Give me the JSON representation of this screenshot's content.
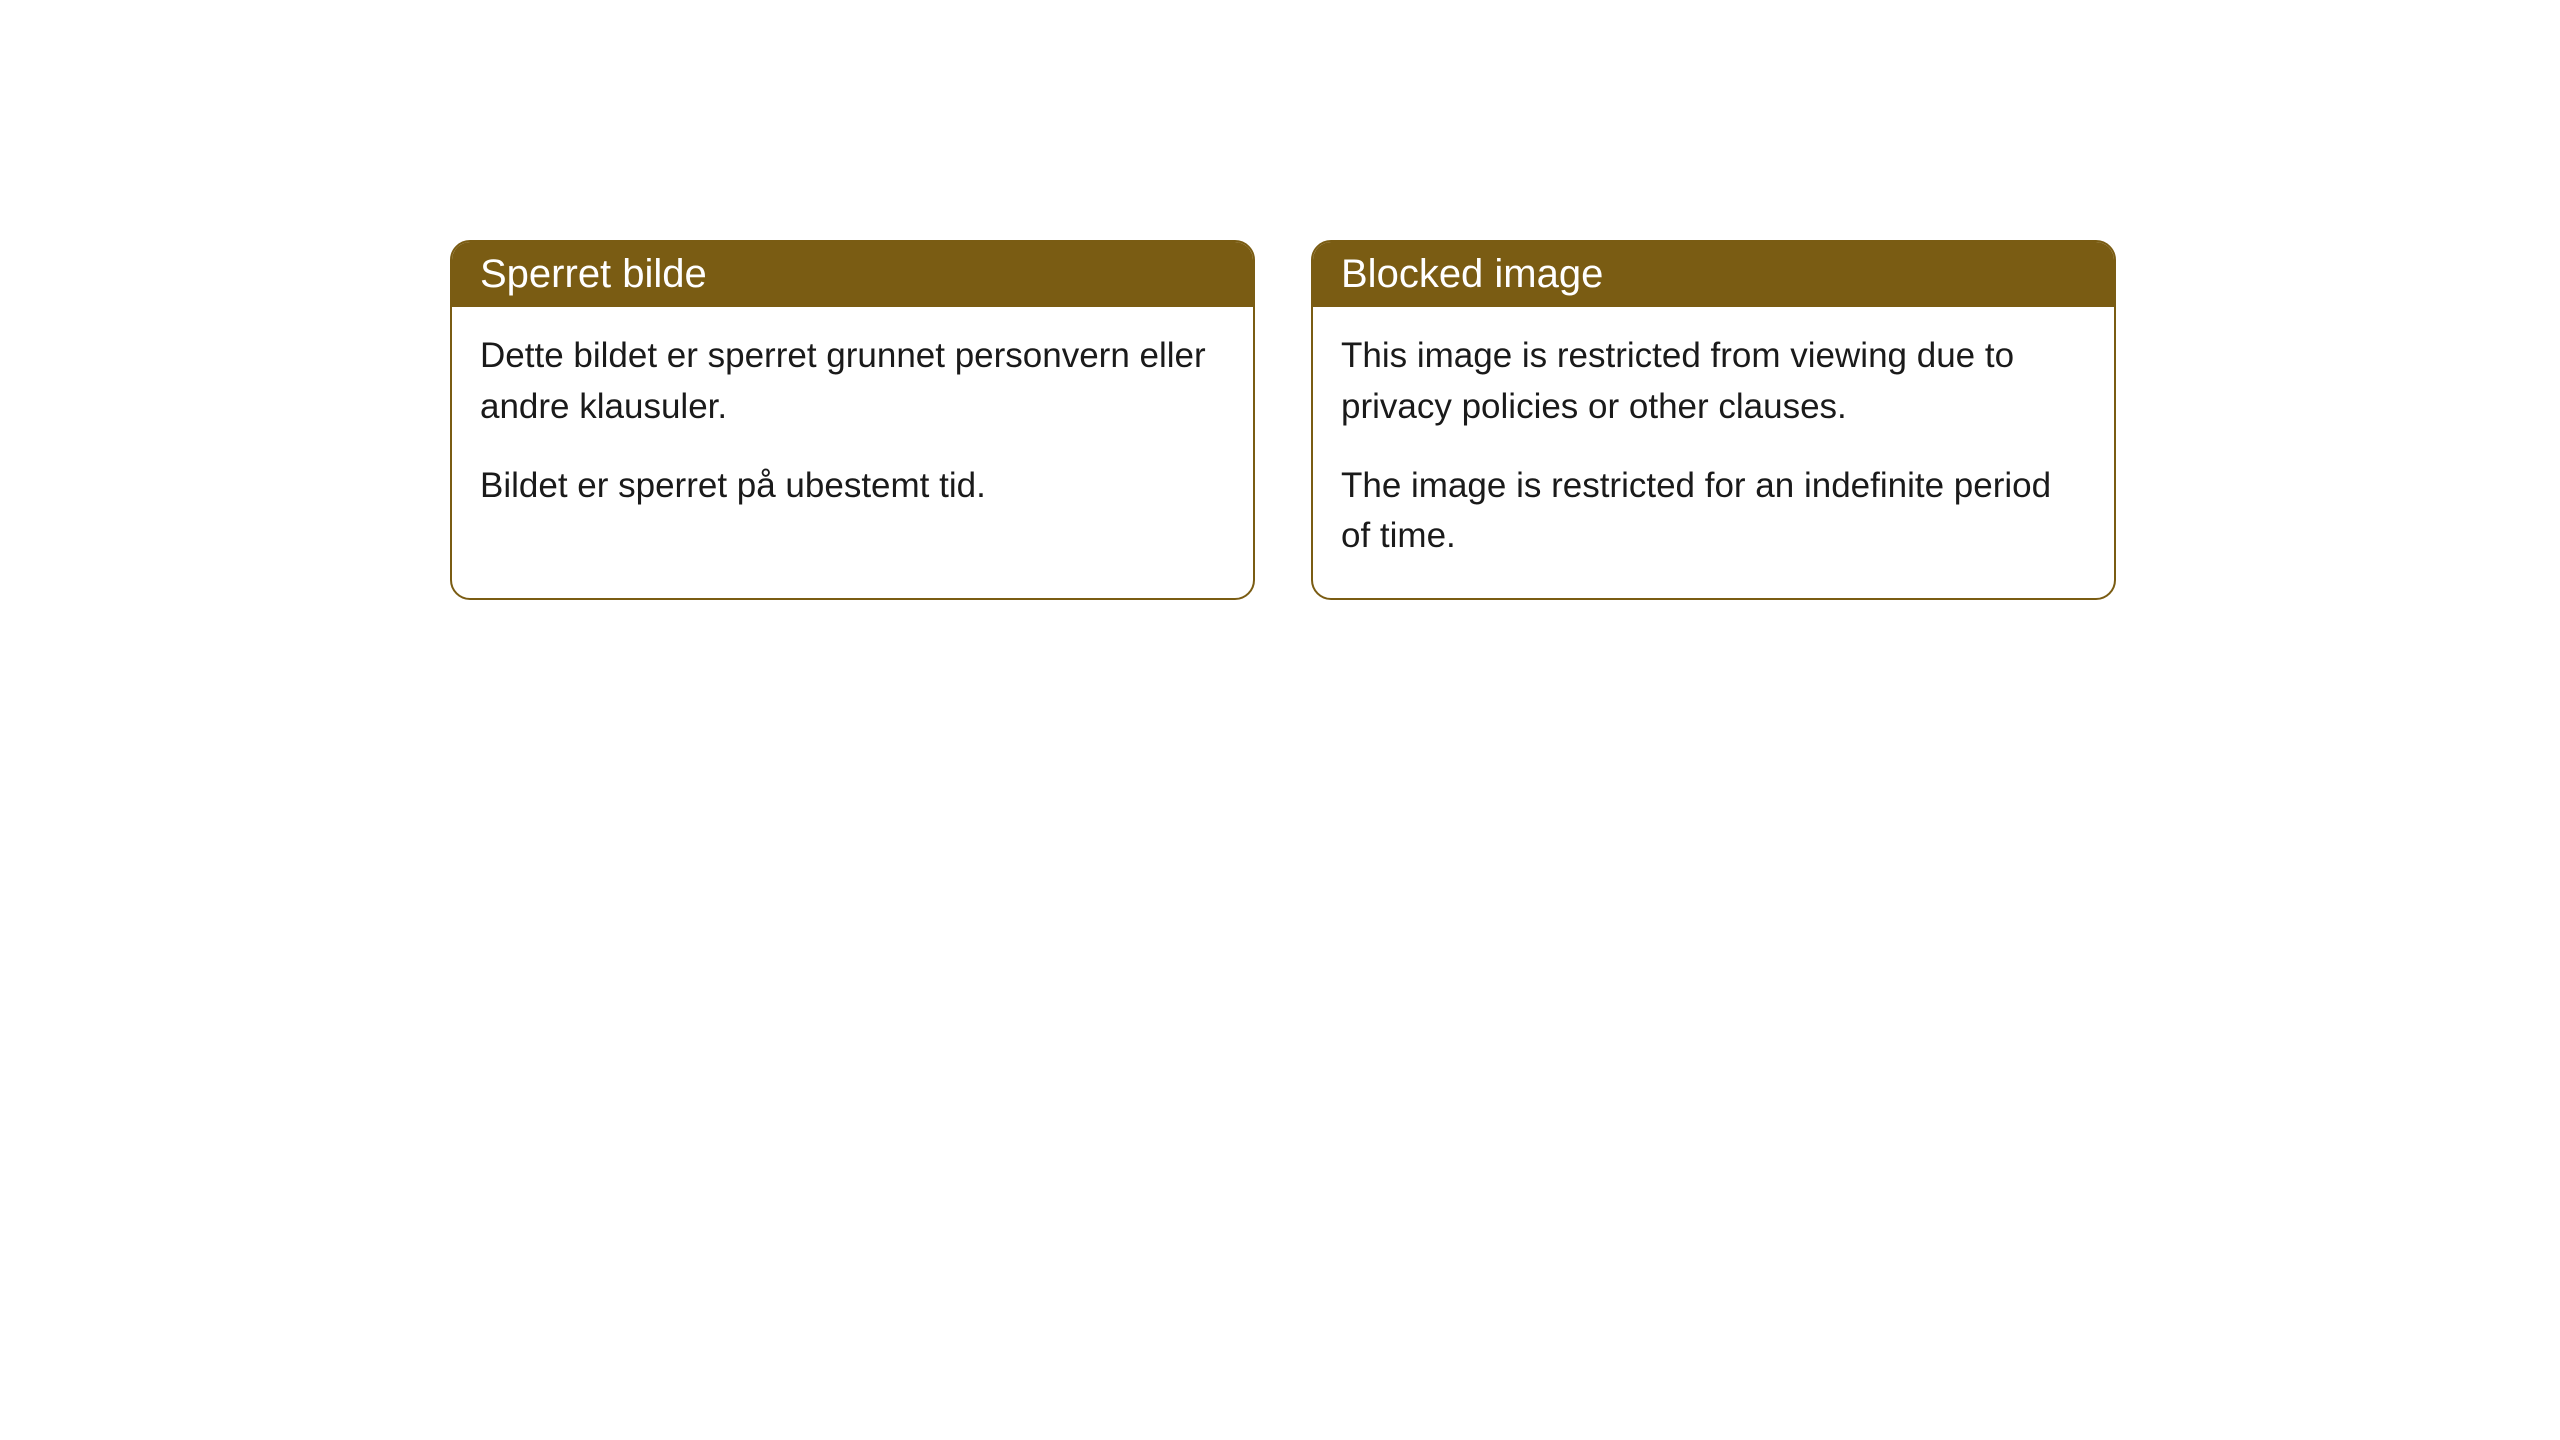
{
  "colors": {
    "header_bg": "#7a5c13",
    "header_text": "#ffffff",
    "border": "#7a5c13",
    "body_bg": "#ffffff",
    "body_text": "#1a1a1a"
  },
  "cards": [
    {
      "title": "Sperret bilde",
      "para1": "Dette bildet er sperret grunnet personvern eller andre klausuler.",
      "para2": "Bildet er sperret på ubestemt tid."
    },
    {
      "title": "Blocked image",
      "para1": "This image is restricted from viewing due to privacy policies or other clauses.",
      "para2": "The image is restricted for an indefinite period of time."
    }
  ]
}
